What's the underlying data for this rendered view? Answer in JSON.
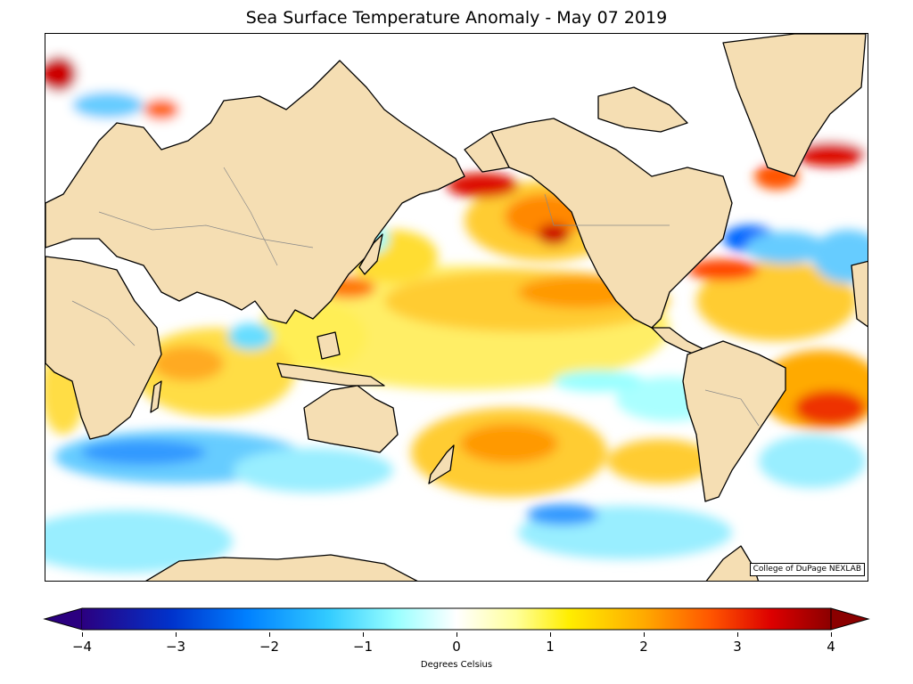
{
  "title": "Sea Surface Temperature Anomaly - May 07 2019",
  "credit": "College of DuPage NEXLAB",
  "colorbar": {
    "label": "Degrees Celsius",
    "min": -4,
    "max": 4,
    "ticks": [
      "−4",
      "−3",
      "−2",
      "−1",
      "0",
      "1",
      "2",
      "3",
      "4"
    ],
    "extend": "both",
    "colors": [
      "#2b0080",
      "#0033cc",
      "#0080ff",
      "#33ccff",
      "#99ffff",
      "#ffffff",
      "#ffff99",
      "#ffee00",
      "#ffaa00",
      "#ff5500",
      "#dd0000",
      "#8b0000"
    ]
  },
  "map": {
    "projection": "Mercator, Pacific-centred",
    "land_color": "#f5deb3",
    "coastline_color": "#000000",
    "border_color": "#888888"
  }
}
